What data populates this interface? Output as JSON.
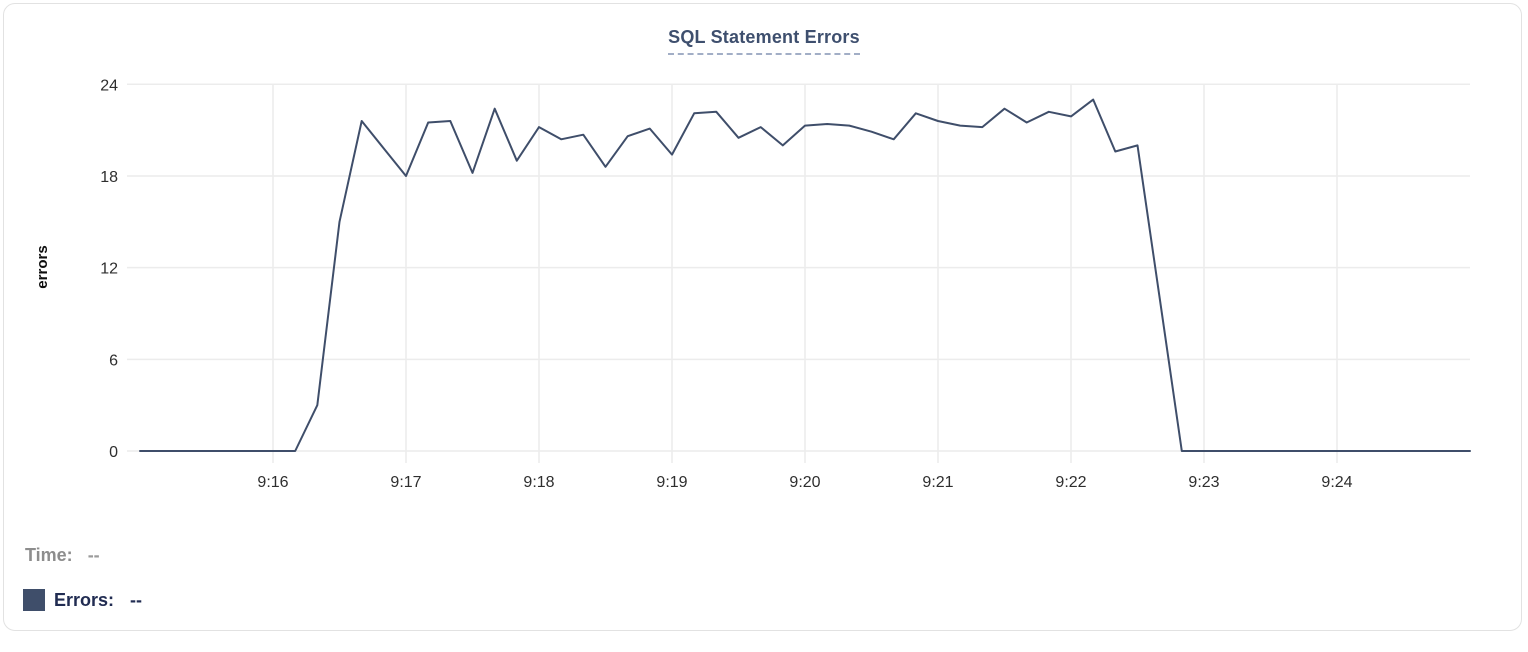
{
  "header": {
    "title": "SQL Statement Errors"
  },
  "legend": {
    "time_label": "Time:",
    "time_value": "--",
    "errors_label": "Errors:",
    "errors_value": "--"
  },
  "colors": {
    "line": "#3f4e6a",
    "swatch": "#3f4e6a",
    "title": "#3e4f6e",
    "title_underline": "#a2aec6",
    "grid": "#ececec",
    "tick_text": "#2e2e2e",
    "axis_label_text": "#0e0e0e",
    "legend_time": "#8d8d8d",
    "legend_errors": "#212c52",
    "card_border": "#e2e2e2"
  },
  "chart_data": {
    "type": "line",
    "title": "SQL Statement Errors",
    "xlabel": "",
    "ylabel": "errors",
    "ylim": [
      0,
      24
    ],
    "y_ticks": [
      0,
      6,
      12,
      18,
      24
    ],
    "x_tick_labels": [
      "9:16",
      "9:17",
      "9:18",
      "9:19",
      "9:20",
      "9:21",
      "9:22",
      "9:23",
      "9:24"
    ],
    "x_range": [
      "9:15:00",
      "9:25:00"
    ],
    "interval_seconds": 10,
    "grid": true,
    "legend_position": "bottom-left",
    "series": [
      {
        "name": "Errors",
        "color": "#3f4e6a",
        "times": [
          "9:15:00",
          "9:15:10",
          "9:15:20",
          "9:15:30",
          "9:15:40",
          "9:15:50",
          "9:16:00",
          "9:16:10",
          "9:16:20",
          "9:16:30",
          "9:16:40",
          "9:16:50",
          "9:17:00",
          "9:17:10",
          "9:17:20",
          "9:17:30",
          "9:17:40",
          "9:17:50",
          "9:18:00",
          "9:18:10",
          "9:18:20",
          "9:18:30",
          "9:18:40",
          "9:18:50",
          "9:19:00",
          "9:19:10",
          "9:19:20",
          "9:19:30",
          "9:19:40",
          "9:19:50",
          "9:20:00",
          "9:20:10",
          "9:20:20",
          "9:20:30",
          "9:20:40",
          "9:20:50",
          "9:21:00",
          "9:21:10",
          "9:21:20",
          "9:21:30",
          "9:21:40",
          "9:21:50",
          "9:22:00",
          "9:22:10",
          "9:22:20",
          "9:22:30",
          "9:22:40",
          "9:22:50",
          "9:23:00",
          "9:23:10",
          "9:23:20",
          "9:23:30",
          "9:23:40",
          "9:23:50",
          "9:24:00",
          "9:24:10",
          "9:24:20",
          "9:24:30",
          "9:24:40",
          "9:24:50",
          "9:25:00"
        ],
        "values": [
          0,
          0,
          0,
          0,
          0,
          0,
          0,
          0,
          3,
          15,
          21.6,
          19.8,
          18,
          21.5,
          21.6,
          18.2,
          22.4,
          19,
          21.2,
          20.4,
          20.7,
          18.6,
          20.6,
          21.1,
          19.4,
          22.1,
          22.2,
          20.5,
          21.2,
          20,
          21.3,
          21.4,
          21.3,
          20.9,
          20.4,
          22.1,
          21.6,
          21.3,
          21.2,
          22.4,
          21.5,
          22.2,
          21.9,
          23,
          19.6,
          20,
          10,
          0,
          0,
          0,
          0,
          0,
          0,
          0,
          0,
          0,
          0,
          0,
          0,
          0,
          0
        ]
      }
    ]
  }
}
